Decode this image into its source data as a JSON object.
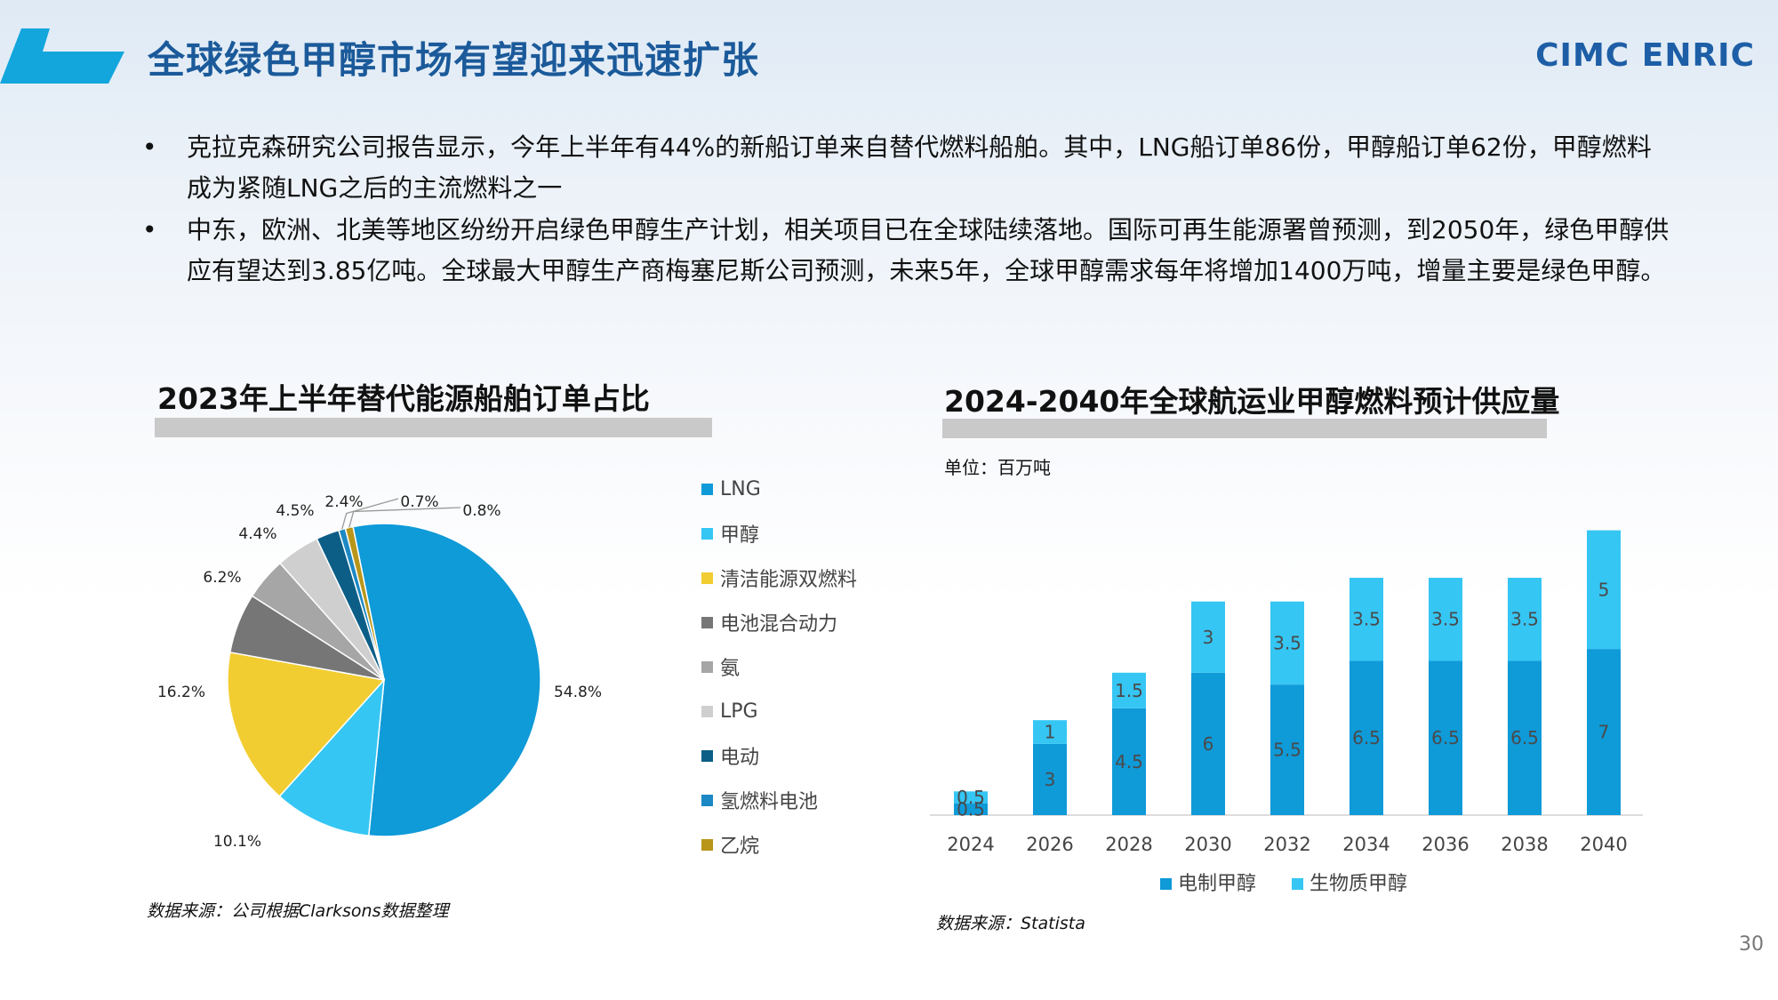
{
  "header": {
    "title": "全球绿色甲醇市场有望迎来迅速扩张",
    "logo_text": "CIMC ENRIC",
    "accent_color": "#13a6dd",
    "title_color": "#1b5a9a"
  },
  "bullets": [
    {
      "marker": "•",
      "text": "克拉克森研究公司报告显示，今年上半年有44%的新船订单来自替代燃料船舶。其中，LNG船订单86份，甲醇船订单62份，甲醇燃料成为紧随LNG之后的主流燃料之一"
    },
    {
      "marker": "•",
      "text": "中东，欧洲、北美等地区纷纷开启绿色甲醇生产计划，相关项目已在全球陆续落地。国际可再生能源署曾预测，到2050年，绿色甲醇供应有望达到3.85亿吨。全球最大甲醇生产商梅塞尼斯公司预测，未来5年，全球甲醇需求每年将增加1400万吨，增量主要是绿色甲醇。"
    }
  ],
  "chart_data": [
    {
      "type": "pie",
      "title": "2023年上半年替代能源船舶订单占比",
      "slices": [
        {
          "label": "LNG",
          "value": 54.8,
          "display": "54.8%",
          "color": "#0f9ad8"
        },
        {
          "label": "甲醇",
          "value": 10.1,
          "display": "10.1%",
          "color": "#35c6f4"
        },
        {
          "label": "清洁能源双燃料",
          "value": 16.2,
          "display": "16.2%",
          "color": "#f2cd32"
        },
        {
          "label": "电池混合动力",
          "value": 6.2,
          "display": "6.2%",
          "color": "#767676"
        },
        {
          "label": "氨",
          "value": 4.4,
          "display": "4.4%",
          "color": "#a6a6a6"
        },
        {
          "label": "LPG",
          "value": 4.5,
          "display": "4.5%",
          "color": "#cfcfcf"
        },
        {
          "label": "电动",
          "value": 2.4,
          "display": "2.4%",
          "color": "#0c5e86"
        },
        {
          "label": "氢燃料电池",
          "value": 0.7,
          "display": "0.7%",
          "color": "#1c88c4"
        },
        {
          "label": "乙烷",
          "value": 0.8,
          "display": "0.8%",
          "color": "#b8961a"
        }
      ],
      "legend_position": "right",
      "source": "数据来源：公司根据Clarksons数据整理"
    },
    {
      "type": "bar",
      "stacked": true,
      "title": "2024-2040年全球航运业甲醇燃料预计供应量",
      "unit": "单位：百万吨",
      "categories": [
        "2024",
        "2026",
        "2028",
        "2030",
        "2032",
        "2034",
        "2036",
        "2038",
        "2040"
      ],
      "series": [
        {
          "name": "电制甲醇",
          "color": "#0f9ad8",
          "values": [
            0.5,
            3,
            4.5,
            6,
            5.5,
            6.5,
            6.5,
            6.5,
            7
          ]
        },
        {
          "name": "生物质甲醇",
          "color": "#35c6f4",
          "values": [
            0.5,
            1,
            1.5,
            3,
            3.5,
            3.5,
            3.5,
            3.5,
            5
          ]
        }
      ],
      "legend_position": "bottom",
      "source": "数据来源：Statista"
    }
  ],
  "footer": {
    "page_number": "30"
  }
}
